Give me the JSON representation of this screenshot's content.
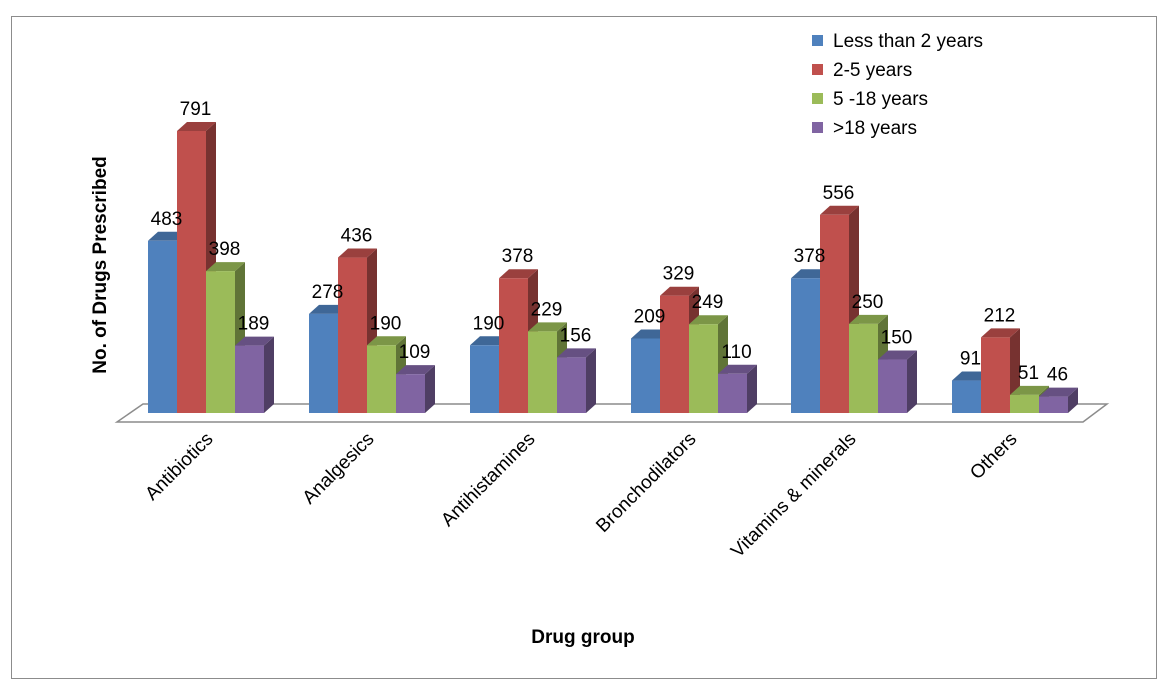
{
  "chart_data": {
    "type": "bar",
    "title": "",
    "xlabel": "Drug group",
    "ylabel": "No. of Drugs Prescribed",
    "categories": [
      "Antibiotics",
      "Analgesics",
      "Antihistamines",
      "Bronchodilators",
      "Vitamins & minerals",
      "Others"
    ],
    "series": [
      {
        "name": "Less than 2 years",
        "color": "#4f81bd",
        "values": [
          483,
          278,
          190,
          209,
          378,
          91
        ]
      },
      {
        "name": "2-5 years",
        "color": "#c0504d",
        "values": [
          791,
          436,
          378,
          329,
          556,
          212
        ]
      },
      {
        "name": "5 -18 years",
        "color": "#9bbb59",
        "values": [
          398,
          190,
          229,
          249,
          250,
          51
        ]
      },
      {
        "name": ">18 years",
        "color": "#8064a2",
        "values": [
          189,
          109,
          156,
          110,
          150,
          46
        ]
      }
    ],
    "ylim": [
      0,
      800
    ],
    "grid": false,
    "legend": "top-right",
    "style": "3d-clustered"
  }
}
